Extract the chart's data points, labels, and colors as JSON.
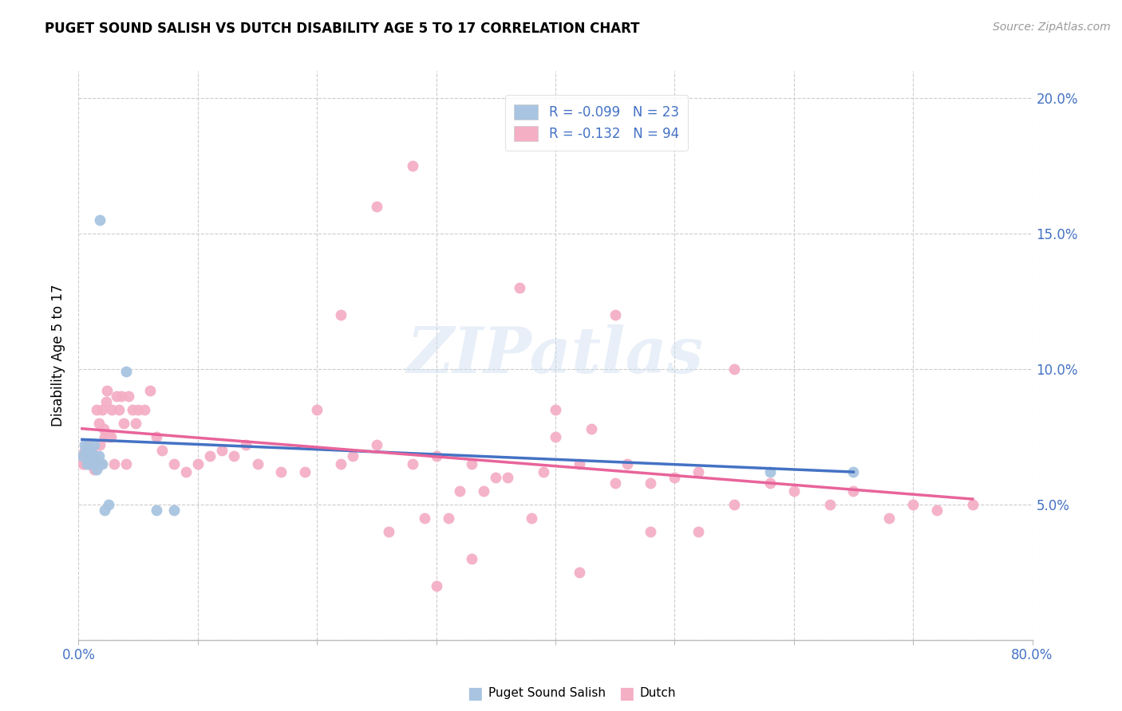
{
  "title": "PUGET SOUND SALISH VS DUTCH DISABILITY AGE 5 TO 17 CORRELATION CHART",
  "source": "Source: ZipAtlas.com",
  "ylabel": "Disability Age 5 to 17",
  "xlim": [
    0.0,
    0.8
  ],
  "ylim": [
    0.0,
    0.21
  ],
  "xtick_vals": [
    0.0,
    0.1,
    0.2,
    0.3,
    0.4,
    0.5,
    0.6,
    0.7,
    0.8
  ],
  "xtick_labels": [
    "0.0%",
    "",
    "",
    "",
    "",
    "",
    "",
    "",
    "80.0%"
  ],
  "ytick_vals": [
    0.0,
    0.05,
    0.1,
    0.15,
    0.2
  ],
  "ytick_labels_right": [
    "",
    "5.0%",
    "10.0%",
    "15.0%",
    "20.0%"
  ],
  "salish_color": "#a8c4e0",
  "dutch_color": "#f4afc5",
  "salish_line_color": "#4472c4",
  "dutch_line_color": "#e8649a",
  "legend_R_salish": "-0.099",
  "legend_N_salish": "23",
  "legend_R_dutch": "-0.132",
  "legend_N_dutch": "94",
  "watermark": "ZIPatlas",
  "salish_x": [
    0.003,
    0.005,
    0.006,
    0.007,
    0.008,
    0.009,
    0.01,
    0.011,
    0.012,
    0.013,
    0.014,
    0.015,
    0.016,
    0.017,
    0.018,
    0.02,
    0.022,
    0.025,
    0.04,
    0.065,
    0.08,
    0.58,
    0.65
  ],
  "salish_y": [
    0.068,
    0.072,
    0.07,
    0.065,
    0.068,
    0.065,
    0.07,
    0.068,
    0.065,
    0.072,
    0.068,
    0.063,
    0.065,
    0.068,
    0.155,
    0.065,
    0.048,
    0.05,
    0.099,
    0.048,
    0.048,
    0.062,
    0.062
  ],
  "dutch_x": [
    0.003,
    0.004,
    0.005,
    0.006,
    0.007,
    0.008,
    0.009,
    0.01,
    0.011,
    0.012,
    0.013,
    0.014,
    0.015,
    0.016,
    0.017,
    0.018,
    0.019,
    0.02,
    0.021,
    0.022,
    0.023,
    0.024,
    0.025,
    0.027,
    0.028,
    0.03,
    0.032,
    0.034,
    0.036,
    0.038,
    0.04,
    0.042,
    0.045,
    0.048,
    0.05,
    0.055,
    0.06,
    0.065,
    0.07,
    0.08,
    0.09,
    0.1,
    0.11,
    0.12,
    0.13,
    0.14,
    0.15,
    0.17,
    0.19,
    0.22,
    0.25,
    0.28,
    0.3,
    0.33,
    0.36,
    0.39,
    0.42,
    0.45,
    0.48,
    0.5,
    0.52,
    0.55,
    0.58,
    0.6,
    0.63,
    0.65,
    0.68,
    0.7,
    0.72,
    0.75,
    0.4,
    0.43,
    0.46,
    0.32,
    0.35,
    0.38,
    0.2,
    0.23,
    0.26,
    0.29,
    0.48,
    0.52,
    0.3,
    0.33,
    0.55,
    0.4,
    0.22,
    0.25,
    0.28,
    0.31,
    0.34,
    0.37,
    0.42,
    0.45
  ],
  "dutch_y": [
    0.068,
    0.065,
    0.07,
    0.065,
    0.068,
    0.072,
    0.065,
    0.068,
    0.07,
    0.065,
    0.063,
    0.068,
    0.085,
    0.065,
    0.08,
    0.072,
    0.065,
    0.085,
    0.078,
    0.075,
    0.088,
    0.092,
    0.075,
    0.075,
    0.085,
    0.065,
    0.09,
    0.085,
    0.09,
    0.08,
    0.065,
    0.09,
    0.085,
    0.08,
    0.085,
    0.085,
    0.092,
    0.075,
    0.07,
    0.065,
    0.062,
    0.065,
    0.068,
    0.07,
    0.068,
    0.072,
    0.065,
    0.062,
    0.062,
    0.065,
    0.072,
    0.065,
    0.068,
    0.065,
    0.06,
    0.062,
    0.065,
    0.058,
    0.058,
    0.06,
    0.062,
    0.05,
    0.058,
    0.055,
    0.05,
    0.055,
    0.045,
    0.05,
    0.048,
    0.05,
    0.075,
    0.078,
    0.065,
    0.055,
    0.06,
    0.045,
    0.085,
    0.068,
    0.04,
    0.045,
    0.04,
    0.04,
    0.02,
    0.03,
    0.1,
    0.085,
    0.12,
    0.16,
    0.175,
    0.045,
    0.055,
    0.13,
    0.025,
    0.12
  ],
  "salish_trend_x": [
    0.003,
    0.65
  ],
  "salish_trend_y": [
    0.074,
    0.062
  ],
  "dutch_trend_x": [
    0.003,
    0.75
  ],
  "dutch_trend_y": [
    0.078,
    0.052
  ]
}
